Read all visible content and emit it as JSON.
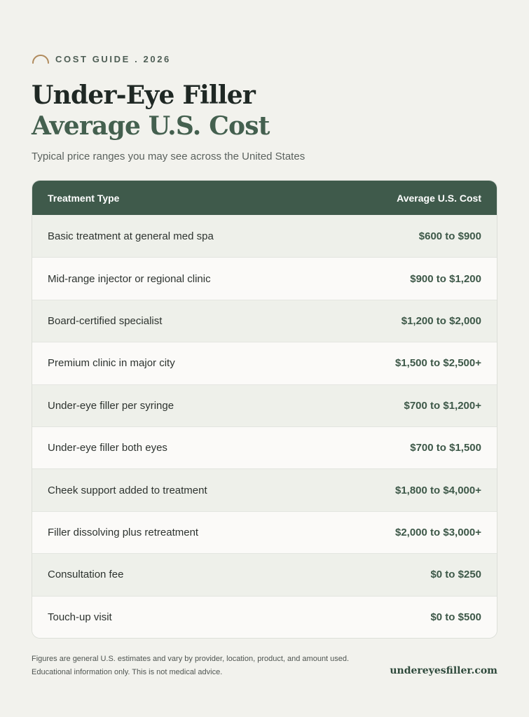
{
  "header": {
    "eyebrow": "COST GUIDE . 2026",
    "title_line1": "Under-Eye Filler",
    "title_line2": "Average U.S. Cost",
    "subtitle": "Typical price ranges you may see across the United States"
  },
  "table": {
    "columns": [
      "Treatment Type",
      "Average U.S. Cost"
    ],
    "rows": [
      {
        "treatment": "Basic treatment at general med spa",
        "cost": "$600 to $900"
      },
      {
        "treatment": "Mid-range injector or regional clinic",
        "cost": "$900 to $1,200"
      },
      {
        "treatment": "Board-certified specialist",
        "cost": "$1,200 to $2,000"
      },
      {
        "treatment": "Premium clinic in major city",
        "cost": "$1,500 to $2,500+"
      },
      {
        "treatment": "Under-eye filler per syringe",
        "cost": "$700 to $1,200+"
      },
      {
        "treatment": "Under-eye filler both eyes",
        "cost": "$700 to $1,500"
      },
      {
        "treatment": "Cheek support added to treatment",
        "cost": "$1,800 to $4,000+"
      },
      {
        "treatment": "Filler dissolving plus retreatment",
        "cost": "$2,000 to $3,000+"
      },
      {
        "treatment": "Consultation fee",
        "cost": "$0 to $250"
      },
      {
        "treatment": "Touch-up visit",
        "cost": "$0 to $500"
      }
    ]
  },
  "footer": {
    "note_line1": "Figures are general U.S. estimates and vary by provider, location, product, and amount used.",
    "note_line2": "Educational information only. This is not medical advice.",
    "website": "undereyesfiller.com"
  },
  "colors": {
    "background": "#f2f2ed",
    "header_green": "#3f5a4b",
    "accent_gold": "#b08a5c",
    "title_green": "#44604f"
  },
  "icons": {
    "eyebrow": "arc-icon"
  }
}
